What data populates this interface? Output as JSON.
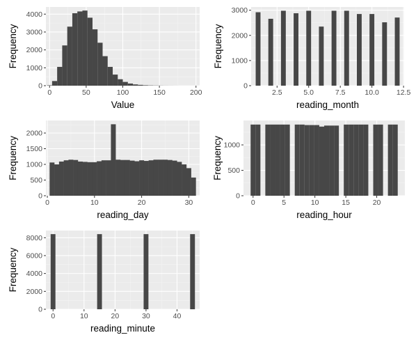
{
  "colors": {
    "panel": "#ebebeb",
    "grid_major": "#ffffff",
    "grid_minor": "#f4f4f4",
    "bar": "#474747",
    "tick_text": "#4d4d4d"
  },
  "chart_data": [
    {
      "id": "value",
      "type": "bar",
      "xlabel": "Value",
      "ylabel": "Frequency",
      "xlim": [
        -5,
        205
      ],
      "ylim": [
        0,
        4400
      ],
      "x_ticks": [
        0,
        50,
        100,
        150,
        200
      ],
      "y_ticks": [
        0,
        1000,
        2000,
        3000,
        4000
      ],
      "bar_width": 6.9,
      "x": [
        0,
        6.9,
        13.8,
        20.7,
        27.6,
        34.5,
        41.4,
        48.3,
        55.2,
        62.1,
        69.0,
        75.9,
        82.8,
        89.7,
        96.6,
        103.5,
        110.4,
        117.3,
        124.2,
        131.1,
        138.0,
        144.9,
        151.8,
        158.7,
        165.6,
        172.5,
        179.4,
        186.3,
        193.2,
        200.1
      ],
      "values": [
        20,
        260,
        1050,
        2250,
        3300,
        4050,
        4150,
        4200,
        3800,
        3150,
        2400,
        1650,
        1050,
        620,
        360,
        210,
        120,
        70,
        45,
        25,
        15,
        10,
        6,
        4,
        3,
        2,
        1,
        1,
        1,
        1
      ]
    },
    {
      "id": "reading_month",
      "type": "bar",
      "xlabel": "reading_month",
      "ylabel": "Frequency",
      "xlim": [
        0.45,
        12.55
      ],
      "ylim": [
        0,
        3130
      ],
      "x_ticks": [
        2.5,
        5.0,
        7.5,
        10.0,
        12.5
      ],
      "x_tick_labels": [
        "2.5",
        "5.0",
        "7.5",
        "10.0",
        "12.5"
      ],
      "y_ticks": [
        0,
        1000,
        2000,
        3000
      ],
      "bar_width": 0.38,
      "x": [
        1,
        2,
        3,
        4,
        5,
        6,
        7,
        8,
        9,
        10,
        11,
        12
      ],
      "values": [
        2920,
        2660,
        2980,
        2880,
        2980,
        2350,
        2980,
        2980,
        2850,
        2850,
        2520,
        2710
      ]
    },
    {
      "id": "reading_day",
      "type": "bar",
      "xlabel": "reading_day",
      "ylabel": "Frequency",
      "xlim": [
        -0.3,
        32.3
      ],
      "ylim": [
        0,
        2400
      ],
      "x_ticks": [
        0,
        10,
        20,
        30
      ],
      "y_ticks": [
        0,
        500,
        1000,
        1500,
        2000
      ],
      "bar_width": 1.034,
      "x": [
        1,
        2,
        3,
        4,
        5,
        6,
        7,
        8,
        9,
        10,
        11,
        12,
        13,
        14,
        15,
        16,
        17,
        18,
        19,
        20,
        21,
        22,
        23,
        24,
        25,
        26,
        27,
        28,
        29,
        30,
        31
      ],
      "values": [
        1060,
        1000,
        1090,
        1130,
        1150,
        1140,
        1090,
        1080,
        1070,
        1070,
        1100,
        1130,
        1130,
        2280,
        1150,
        1140,
        1140,
        1120,
        1100,
        1130,
        1110,
        1130,
        1150,
        1150,
        1150,
        1140,
        1120,
        1080,
        1000,
        880,
        580
      ]
    },
    {
      "id": "reading_hour",
      "type": "bar",
      "xlabel": "reading_hour",
      "ylabel": "Frequency",
      "xlim": [
        -1.55,
        24.55
      ],
      "ylim": [
        0,
        1480
      ],
      "x_ticks": [
        0,
        5,
        10,
        15,
        20
      ],
      "y_ticks": [
        0,
        500,
        1000
      ],
      "bar_width": 0.793,
      "x": [
        0,
        0.793,
        1.586,
        2.379,
        3.172,
        3.966,
        4.759,
        5.552,
        6.345,
        7.138,
        7.931,
        8.724,
        9.517,
        10.31,
        11.103,
        11.897,
        12.69,
        13.483,
        14.276,
        15.069,
        15.862,
        16.655,
        17.448,
        18.241,
        19.034,
        19.828,
        20.621,
        21.414,
        22.207,
        23.0
      ],
      "values": [
        1400,
        1400,
        0,
        1400,
        1400,
        1400,
        1400,
        1400,
        0,
        1400,
        1400,
        1390,
        1390,
        1390,
        1360,
        1380,
        1380,
        1380,
        0,
        1400,
        1400,
        1400,
        1400,
        1400,
        0,
        1400,
        1400,
        0,
        1400,
        1400
      ]
    },
    {
      "id": "reading_minute",
      "type": "bar",
      "xlabel": "reading_minute",
      "ylabel": "Frequency",
      "xlim": [
        -2.3,
        47.3
      ],
      "ylim": [
        0,
        8800
      ],
      "x_ticks": [
        0,
        10,
        20,
        30,
        40
      ],
      "y_ticks": [
        0,
        2000,
        4000,
        6000,
        8000
      ],
      "bar_width": 1.55,
      "x": [
        0,
        15,
        30,
        45
      ],
      "values": [
        8400,
        8400,
        8400,
        8400
      ]
    }
  ]
}
